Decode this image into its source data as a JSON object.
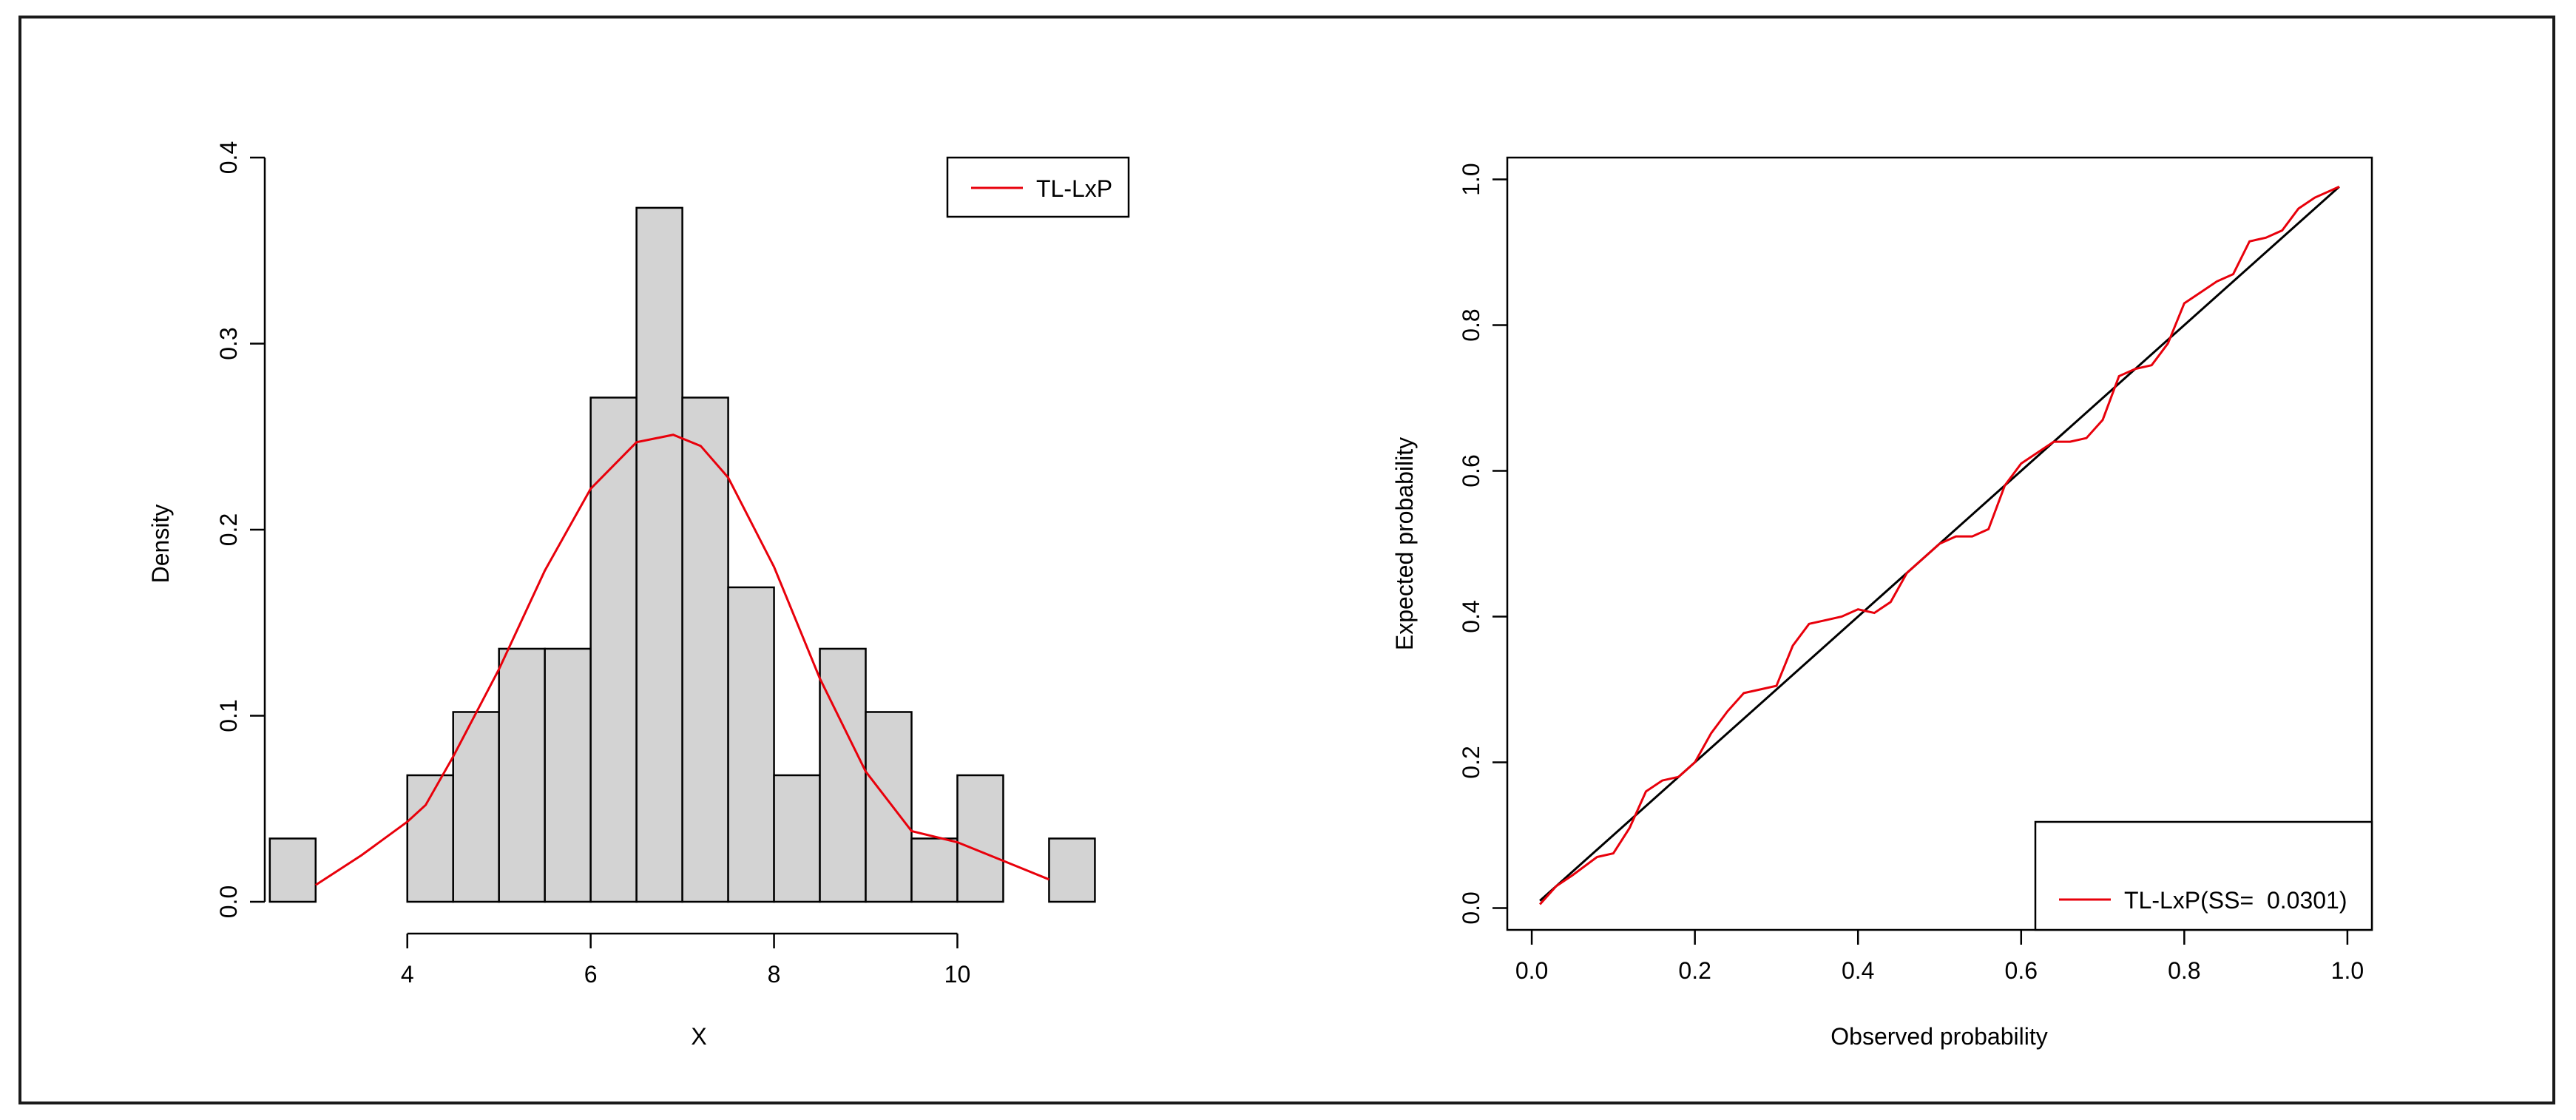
{
  "chart_data": [
    {
      "type": "bar",
      "subtype": "histogram",
      "xlabel": "X",
      "ylabel": "Density",
      "xlim": [
        2.3,
        11.9
      ],
      "ylim": [
        0,
        0.4
      ],
      "bins": [
        {
          "x0": 2.5,
          "x1": 3.0,
          "value": 0.034
        },
        {
          "x0": 3.0,
          "x1": 3.5,
          "value": 0.0
        },
        {
          "x0": 3.5,
          "x1": 4.0,
          "value": 0.0
        },
        {
          "x0": 4.0,
          "x1": 4.5,
          "value": 0.068
        },
        {
          "x0": 4.5,
          "x1": 5.0,
          "value": 0.102
        },
        {
          "x0": 5.0,
          "x1": 5.5,
          "value": 0.136
        },
        {
          "x0": 5.5,
          "x1": 6.0,
          "value": 0.136
        },
        {
          "x0": 6.0,
          "x1": 6.5,
          "value": 0.271
        },
        {
          "x0": 6.5,
          "x1": 7.0,
          "value": 0.373
        },
        {
          "x0": 7.0,
          "x1": 7.5,
          "value": 0.271
        },
        {
          "x0": 7.5,
          "x1": 8.0,
          "value": 0.169
        },
        {
          "x0": 8.0,
          "x1": 8.5,
          "value": 0.068
        },
        {
          "x0": 8.5,
          "x1": 9.0,
          "value": 0.136
        },
        {
          "x0": 9.0,
          "x1": 9.5,
          "value": 0.102
        },
        {
          "x0": 9.5,
          "x1": 10.0,
          "value": 0.034
        },
        {
          "x0": 10.0,
          "x1": 10.5,
          "value": 0.068
        },
        {
          "x0": 10.5,
          "x1": 11.0,
          "value": 0.0
        },
        {
          "x0": 11.0,
          "x1": 11.5,
          "value": 0.034
        }
      ],
      "series": [
        {
          "name": "TL-LxP",
          "color": "#e8000b",
          "x": [
            3.0,
            3.5,
            4.0,
            4.2,
            4.5,
            5.0,
            5.5,
            6.0,
            6.5,
            6.9,
            7.2,
            7.5,
            8.0,
            8.5,
            9.0,
            9.5,
            10.0,
            10.5,
            11.0
          ],
          "y": [
            0.009,
            0.025,
            0.043,
            0.052,
            0.078,
            0.125,
            0.178,
            0.222,
            0.247,
            0.251,
            0.245,
            0.228,
            0.18,
            0.12,
            0.07,
            0.038,
            0.032,
            0.022,
            0.012
          ]
        }
      ],
      "xticks": [
        "4",
        "6",
        "8",
        "10"
      ],
      "yticks": [
        "0.0",
        "0.1",
        "0.2",
        "0.3",
        "0.4"
      ],
      "legend": {
        "placement": "top-right",
        "entries": [
          "TL-LxP"
        ]
      },
      "bar_fill": "#d3d3d3"
    },
    {
      "type": "line",
      "subtype": "pp-plot",
      "xlabel": "Observed probability",
      "ylabel": "Expected probability",
      "xlim": [
        -0.03,
        1.03
      ],
      "ylim": [
        -0.03,
        1.03
      ],
      "reference_line": {
        "x": [
          0.01,
          0.99
        ],
        "y": [
          0.01,
          0.99
        ],
        "color": "#000000"
      },
      "series": [
        {
          "name": "TL-LxP(SS=  0.0301)",
          "color": "#e8000b",
          "x": [
            0.01,
            0.03,
            0.05,
            0.08,
            0.1,
            0.12,
            0.14,
            0.16,
            0.18,
            0.2,
            0.22,
            0.24,
            0.26,
            0.28,
            0.3,
            0.32,
            0.34,
            0.36,
            0.38,
            0.4,
            0.42,
            0.44,
            0.46,
            0.48,
            0.5,
            0.52,
            0.54,
            0.56,
            0.58,
            0.6,
            0.62,
            0.64,
            0.66,
            0.68,
            0.7,
            0.72,
            0.74,
            0.76,
            0.78,
            0.8,
            0.82,
            0.84,
            0.86,
            0.88,
            0.9,
            0.92,
            0.94,
            0.96,
            0.98,
            0.99
          ],
          "y": [
            0.005,
            0.03,
            0.045,
            0.07,
            0.075,
            0.11,
            0.16,
            0.175,
            0.18,
            0.2,
            0.24,
            0.27,
            0.295,
            0.3,
            0.305,
            0.36,
            0.39,
            0.395,
            0.4,
            0.41,
            0.405,
            0.42,
            0.46,
            0.48,
            0.5,
            0.51,
            0.51,
            0.52,
            0.58,
            0.61,
            0.625,
            0.64,
            0.64,
            0.645,
            0.67,
            0.73,
            0.74,
            0.745,
            0.775,
            0.83,
            0.845,
            0.86,
            0.87,
            0.915,
            0.92,
            0.93,
            0.96,
            0.975,
            0.985,
            0.99
          ]
        }
      ],
      "xticks": [
        "0.0",
        "0.2",
        "0.4",
        "0.6",
        "0.8",
        "1.0"
      ],
      "yticks": [
        "0.0",
        "0.2",
        "0.4",
        "0.6",
        "0.8",
        "1.0"
      ],
      "legend": {
        "placement": "bottom-right",
        "entries": [
          "TL-LxP(SS=  0.0301)"
        ]
      }
    }
  ]
}
